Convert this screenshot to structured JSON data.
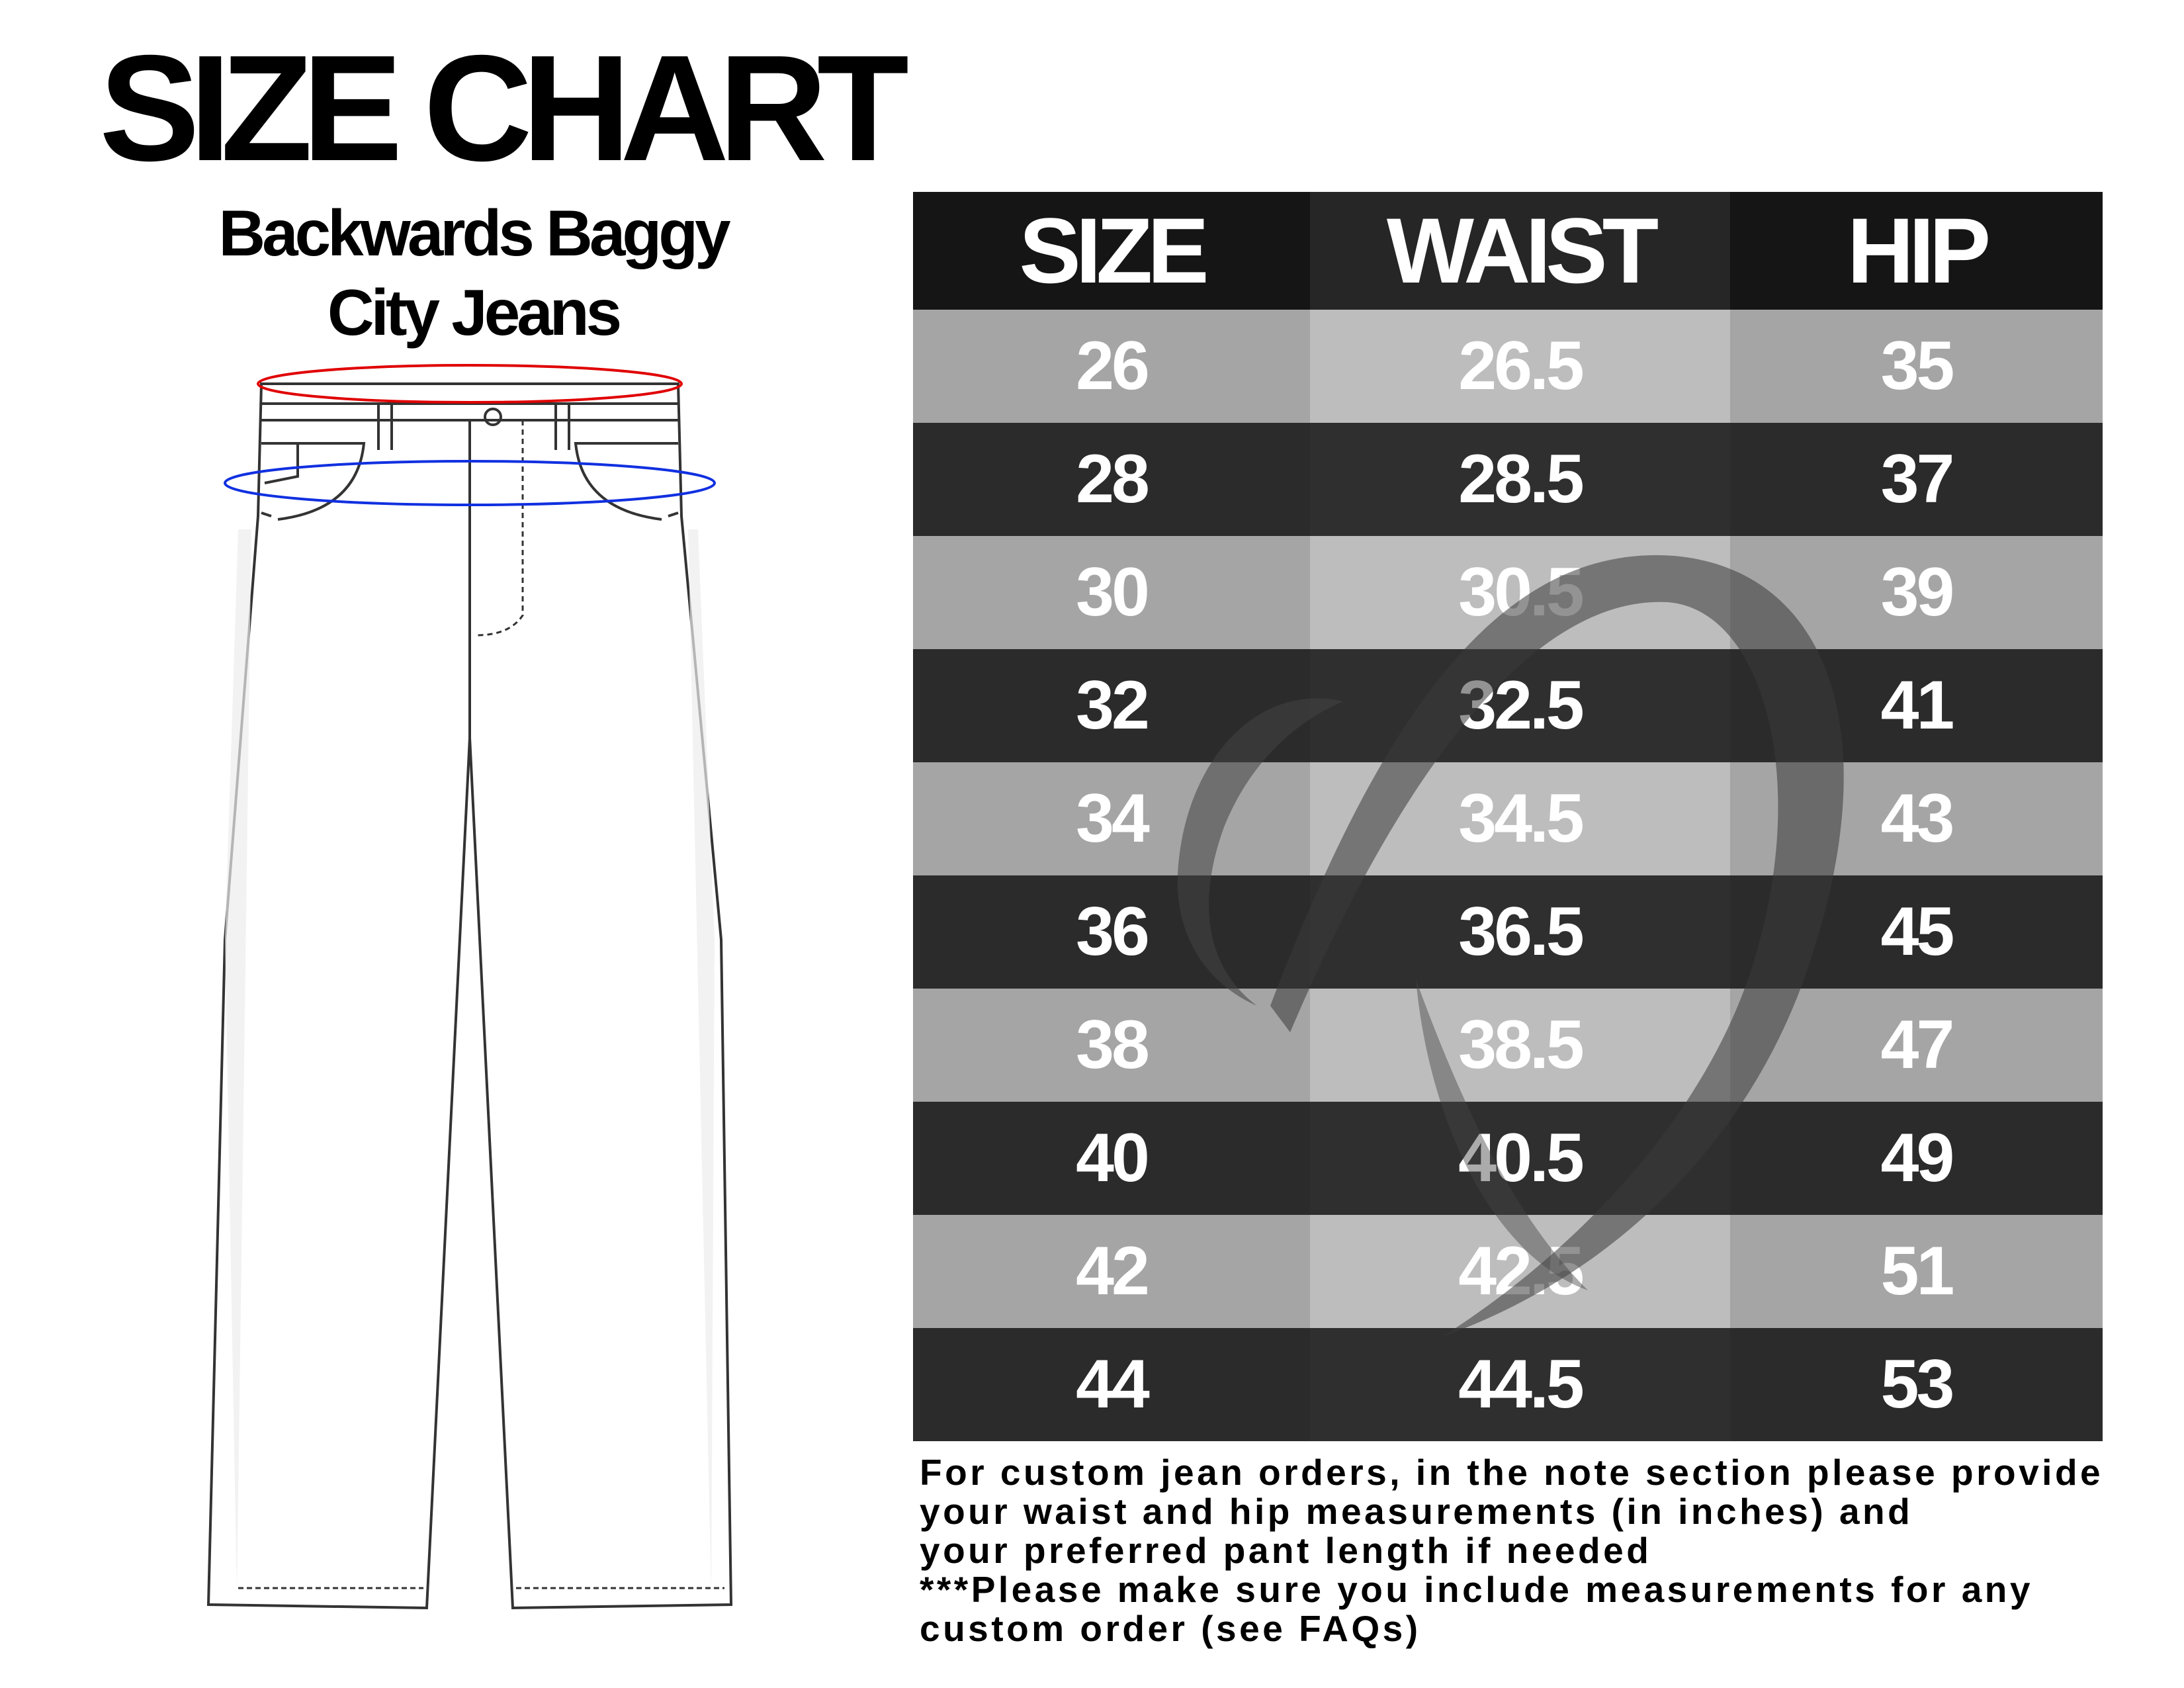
{
  "title": "SIZE CHART",
  "subtitle": [
    "Backwards Baggy",
    "City Jeans"
  ],
  "measure_colors": {
    "waist": "#e00000",
    "hip": "#1030e0"
  },
  "table": {
    "headers": [
      "SIZE",
      "WAIST",
      "HIP"
    ],
    "rows": [
      [
        "26",
        "26.5",
        "35"
      ],
      [
        "28",
        "28.5",
        "37"
      ],
      [
        "30",
        "30.5",
        "39"
      ],
      [
        "32",
        "32.5",
        "41"
      ],
      [
        "34",
        "34.5",
        "43"
      ],
      [
        "36",
        "36.5",
        "45"
      ],
      [
        "38",
        "38.5",
        "47"
      ],
      [
        "40",
        "40.5",
        "49"
      ],
      [
        "42",
        "42.5",
        "51"
      ],
      [
        "44",
        "44.5",
        "53"
      ]
    ]
  },
  "note": [
    "For custom jean orders, in the note section please provide",
    "your waist and hip measurements (in inches) and",
    "your preferred pant length if needed",
    "***Please make sure you include measurements for any",
    "custom order (see FAQs)"
  ]
}
